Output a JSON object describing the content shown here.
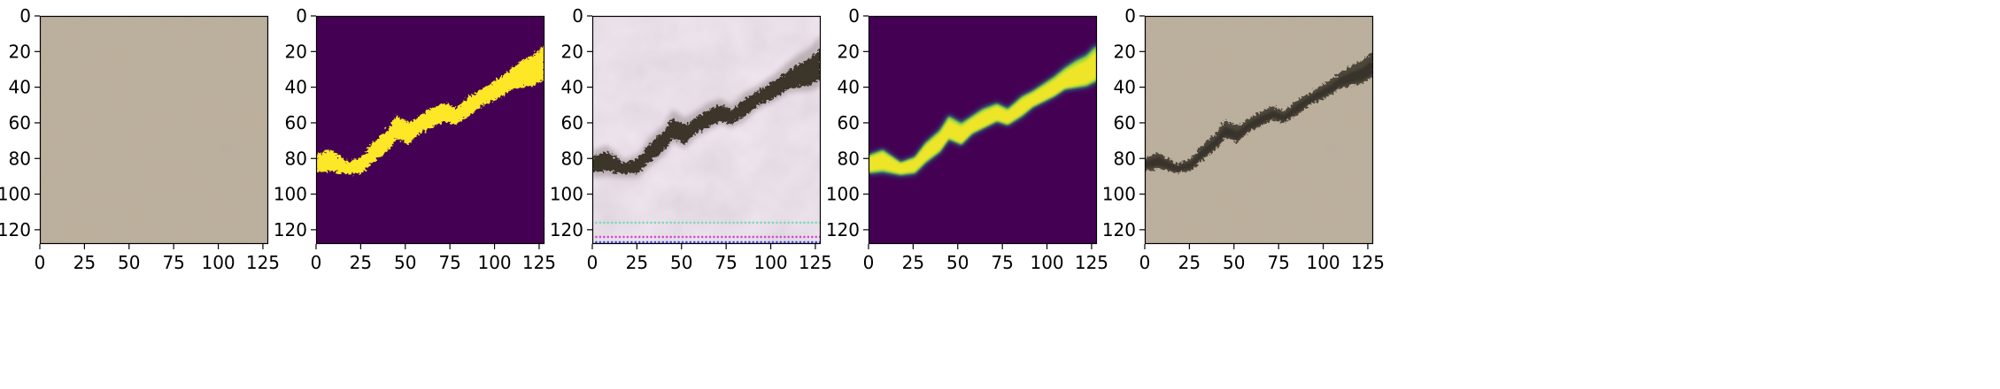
{
  "figure": {
    "panels": [
      {
        "id": "panel-1",
        "content": "concrete-texture-image"
      },
      {
        "id": "panel-2",
        "content": "binary-crack-mask"
      },
      {
        "id": "panel-3",
        "content": "synthesized-crack-image"
      },
      {
        "id": "panel-4",
        "content": "soft-crack-mask"
      },
      {
        "id": "panel-5",
        "content": "composited-crack-image"
      }
    ],
    "x_ticks": [
      "0",
      "25",
      "50",
      "75",
      "100",
      "125"
    ],
    "y_ticks": [
      "0",
      "20",
      "40",
      "60",
      "80",
      "100",
      "120"
    ],
    "x_tick_values": [
      0,
      25,
      50,
      75,
      100,
      125
    ],
    "y_tick_values": [
      0,
      20,
      40,
      60,
      80,
      100,
      120
    ],
    "axis_range": [
      0,
      128
    ],
    "colors": {
      "mask_background": "#440154",
      "mask_foreground": "#fde725",
      "soft_mid": "#a0da39",
      "soft_edge": "#21918c",
      "concrete": "#b9ac96",
      "crack_dark": "#3a352c",
      "synth_bg": "#f2e8f2"
    }
  }
}
